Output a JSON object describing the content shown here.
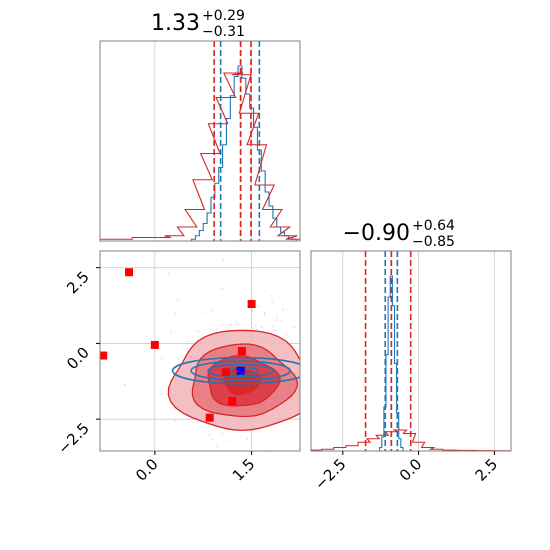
{
  "chart_data": [
    {
      "type": "area",
      "panel": "marginal-x",
      "title": {
        "value": "1.33",
        "upper": "+0.29",
        "lower": "−0.31"
      },
      "x_range": [
        -0.85,
        2.25
      ],
      "grid": true,
      "series": [
        {
          "color": "#1f77b4",
          "quantiles": [
            1.02,
            1.33,
            1.62
          ],
          "histogram": {
            "x": [
              0.6,
              0.66,
              0.72,
              0.78,
              0.84,
              0.9,
              0.96,
              1.02,
              1.08,
              1.14,
              1.2,
              1.26,
              1.32,
              1.38,
              1.44,
              1.5,
              1.56,
              1.62,
              1.68,
              1.74,
              1.8,
              1.86,
              1.92,
              1.98,
              2.04,
              2.1,
              2.16,
              2.22
            ],
            "y": [
              0.01,
              0.03,
              0.06,
              0.1,
              0.16,
              0.25,
              0.33,
              0.42,
              0.55,
              0.7,
              0.83,
              0.94,
              1.0,
              0.93,
              0.84,
              0.76,
              0.65,
              0.52,
              0.4,
              0.28,
              0.2,
              0.13,
              0.08,
              0.05,
              0.03,
              0.02,
              0.01,
              0.0
            ]
          }
        },
        {
          "color": "#d62728",
          "quantiles": [
            0.92,
            1.33,
            1.49
          ],
          "histogram": {
            "x": [
              -0.8,
              -0.5,
              -0.2,
              0.1,
              0.3,
              0.5,
              0.62,
              0.74,
              0.86,
              0.98,
              1.1,
              1.22,
              1.34,
              1.46,
              1.58,
              1.7,
              1.82,
              1.94,
              2.06,
              2.18
            ],
            "y": [
              0.01,
              0.01,
              0.02,
              0.02,
              0.03,
              0.08,
              0.18,
              0.35,
              0.5,
              0.67,
              0.82,
              0.96,
              0.95,
              0.73,
              0.55,
              0.32,
              0.18,
              0.08,
              0.03,
              0.01
            ]
          }
        }
      ]
    },
    {
      "type": "scatter",
      "panel": "joint",
      "x_range": [
        -0.85,
        2.25
      ],
      "y_range": [
        -3.55,
        3.05
      ],
      "x_ticks": [
        "0.0",
        "1.5"
      ],
      "y_ticks": [
        "2.5",
        "0.0",
        "−2.5"
      ],
      "grid": true,
      "red_markers": [
        {
          "x": -0.8,
          "y": -0.4
        },
        {
          "x": -0.4,
          "y": 2.35
        },
        {
          "x": 0.0,
          "y": -0.05
        },
        {
          "x": 1.5,
          "y": 1.3
        },
        {
          "x": 1.35,
          "y": -0.25
        },
        {
          "x": 1.1,
          "y": -0.95
        },
        {
          "x": 1.2,
          "y": -1.9
        },
        {
          "x": 0.85,
          "y": -2.45
        }
      ],
      "blue_marker": {
        "x": 1.33,
        "y": -0.9
      },
      "blue_contour": {
        "center": [
          1.33,
          -0.9
        ],
        "sigma": [
          0.3,
          0.14
        ],
        "color": "#1f77b4"
      },
      "red_contour": {
        "center": [
          1.35,
          -0.9
        ],
        "sigma": [
          0.55,
          1.1
        ],
        "color": "#d62728"
      }
    },
    {
      "type": "area",
      "panel": "marginal-y",
      "title": {
        "value": "−0.90",
        "upper": "+0.64",
        "lower": "−0.85"
      },
      "x_range": [
        -3.55,
        3.05
      ],
      "x_ticks": [
        "−2.5",
        "0.0",
        "2.5"
      ],
      "grid": true,
      "series": [
        {
          "color": "#1f77b4",
          "quantiles": [
            -1.1,
            -0.9,
            -0.7
          ],
          "histogram": {
            "x": [
              -1.25,
              -1.18,
              -1.11,
              -1.04,
              -0.97,
              -0.9,
              -0.83,
              -0.76,
              -0.69,
              -0.62,
              -0.55
            ],
            "y": [
              0.02,
              0.08,
              0.25,
              0.55,
              0.88,
              1.0,
              0.83,
              0.5,
              0.22,
              0.07,
              0.02
            ]
          }
        },
        {
          "color": "#d62728",
          "quantiles": [
            -1.75,
            -0.9,
            -0.26
          ],
          "histogram": {
            "x": [
              -3.4,
              -3.0,
              -2.6,
              -2.2,
              -1.8,
              -1.5,
              -1.2,
              -0.9,
              -0.6,
              -0.3,
              0.0,
              0.3,
              0.6,
              1.0,
              1.6,
              2.2,
              2.8
            ],
            "y": [
              0.005,
              0.01,
              0.02,
              0.03,
              0.05,
              0.07,
              0.09,
              0.11,
              0.12,
              0.1,
              0.05,
              0.02,
              0.01,
              0.005,
              0.003,
              0.002,
              0.001
            ]
          }
        }
      ]
    }
  ]
}
